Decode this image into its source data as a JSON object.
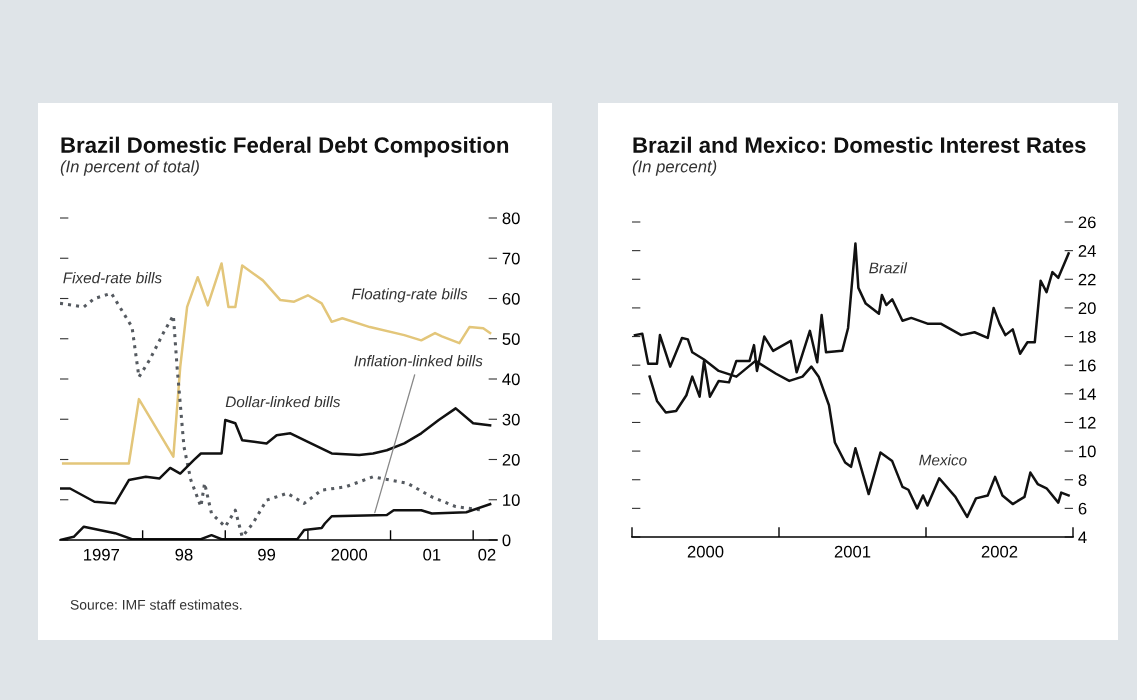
{
  "chart_data": [
    {
      "type": "line",
      "title": "Brazil Domestic Federal Debt Composition",
      "subtitle": "(In percent of total)",
      "xlim": [
        "1997-01-01",
        "2002-04-15"
      ],
      "xticks": [
        {
          "value": "1998-01-01",
          "label": null
        },
        {
          "value": "1999-01-01",
          "label": null
        },
        {
          "value": "2000-01-01",
          "label": null
        },
        {
          "value": "2001-01-01",
          "label": null
        },
        {
          "value": "2002-01-01",
          "label": null
        },
        {
          "value": "1997-07-01",
          "label": "1997"
        },
        {
          "value": "1998-07-01",
          "label": "98"
        },
        {
          "value": "1999-07-01",
          "label": "99"
        },
        {
          "value": "2000-07-01",
          "label": "2000"
        },
        {
          "value": "2001-07-01",
          "label": "01"
        },
        {
          "value": "2002-03-01",
          "label": "02"
        }
      ],
      "ylim": [
        0,
        80
      ],
      "yticks": [
        0,
        10,
        20,
        30,
        40,
        50,
        60,
        70,
        80
      ],
      "annotations": [
        "Source: IMF staff estimates."
      ],
      "series": [
        {
          "name": "Floating-rate bills",
          "color": "#e3c67a",
          "line_style": "solid",
          "x": [
            "1997-01-15",
            "1997-11-01",
            "1997-12-15",
            "1998-05-15",
            "1998-06-15",
            "1998-07-15",
            "1998-09-01",
            "1998-10-15",
            "1998-12-15",
            "1999-01-15",
            "1999-02-15",
            "1999-03-15",
            "1999-06-15",
            "1999-09-01",
            "1999-11-01",
            "2000-01-01",
            "2000-03-01",
            "2000-04-15",
            "2000-06-01",
            "2000-10-01",
            "2001-03-01",
            "2001-05-15",
            "2001-07-15",
            "2001-08-15",
            "2001-11-01",
            "2001-12-15",
            "2002-02-15",
            "2002-03-15"
          ],
          "values": [
            19,
            19,
            35,
            20.7,
            43,
            57.9,
            65.3,
            58.3,
            68.7,
            57.9,
            57.9,
            68.2,
            64.5,
            59.6,
            59.2,
            60.8,
            58.8,
            54.2,
            55.1,
            52.9,
            50.9,
            49.6,
            51.4,
            50.6,
            48.9,
            52.9,
            52.6,
            51.4
          ]
        },
        {
          "name": "Fixed-rate bills",
          "color": "#555a60",
          "line_style": "dotted",
          "x": [
            "1997-01-01",
            "1997-04-15",
            "1997-06-01",
            "1997-08-15",
            "1997-11-15",
            "1997-12-15",
            "1998-02-01",
            "1998-04-01",
            "1998-05-15",
            "1998-06-01",
            "1998-07-01",
            "1998-08-01",
            "1998-09-15",
            "1998-10-01",
            "1998-11-01",
            "1999-01-01",
            "1999-02-15",
            "1999-03-15",
            "1999-05-01",
            "1999-07-01",
            "1999-10-01",
            "1999-12-15",
            "2000-03-01",
            "2000-06-15",
            "2000-10-15",
            "2001-03-15",
            "2001-07-01",
            "2001-10-15",
            "2002-02-15"
          ],
          "values": [
            58.8,
            57.9,
            60,
            61.3,
            52.9,
            40.5,
            44.7,
            51.4,
            55.8,
            43,
            23.2,
            14.9,
            8.3,
            14.1,
            6.6,
            3.3,
            7.4,
            0.8,
            4.1,
            9.9,
            11.6,
            9.1,
            12.4,
            13.2,
            15.7,
            14.1,
            10.7,
            8.3,
            7.4
          ]
        },
        {
          "name": "Dollar-linked bills",
          "color": "#111111",
          "line_style": "solid",
          "x": [
            "1997-01-01",
            "1997-02-15",
            "1997-06-01",
            "1997-09-01",
            "1997-11-01",
            "1998-01-15",
            "1998-03-15",
            "1998-05-01",
            "1998-06-15",
            "1998-08-15",
            "1998-09-15",
            "1998-12-15",
            "1999-01-01",
            "1999-02-15",
            "1999-03-15",
            "1999-07-01",
            "1999-08-15",
            "1999-10-15",
            "2000-01-01",
            "2000-04-15",
            "2000-08-15",
            "2000-10-15",
            "2000-12-15",
            "2001-03-01",
            "2001-05-15",
            "2001-08-01",
            "2001-10-15",
            "2002-01-01",
            "2002-03-15"
          ],
          "values": [
            12.8,
            12.8,
            9.5,
            9.1,
            14.9,
            15.7,
            15.3,
            17.9,
            16.5,
            19.9,
            21.5,
            21.5,
            29.8,
            29,
            24.8,
            24,
            26,
            26.5,
            24.4,
            21.5,
            21.1,
            21.5,
            22.3,
            24,
            26.5,
            29.8,
            32.7,
            29,
            28.5
          ]
        },
        {
          "name": "Inflation-linked bills",
          "color": "#111111",
          "line_style": "solid",
          "x": [
            "1997-01-01",
            "1997-03-01",
            "1997-04-15",
            "1997-09-01",
            "1997-11-15",
            "1998-09-15",
            "1998-11-01",
            "1998-12-15",
            "1999-11-15",
            "1999-12-15",
            "2000-03-01",
            "2000-03-15",
            "2000-04-15",
            "2000-12-15",
            "2001-01-15",
            "2001-05-15",
            "2001-07-01",
            "2001-12-01",
            "2002-03-15"
          ],
          "values": [
            0,
            0.8,
            3.3,
            1.7,
            0.2,
            0.2,
            1.2,
            0.2,
            0.2,
            2.5,
            3,
            4.1,
            5.9,
            6.2,
            7.4,
            7.4,
            6.6,
            6.9,
            8.9
          ]
        }
      ]
    },
    {
      "type": "line",
      "title": "Brazil and Mexico: Domestic Interest Rates",
      "subtitle": "(In percent)",
      "xlim": [
        2000,
        2003
      ],
      "xticks": [
        {
          "value": 2000,
          "label": null
        },
        {
          "value": 2001,
          "label": null
        },
        {
          "value": 2002,
          "label": null
        },
        {
          "value": 2003,
          "label": null
        },
        {
          "value": 2000.5,
          "label": "2000"
        },
        {
          "value": 2001.5,
          "label": "2001"
        },
        {
          "value": 2002.5,
          "label": "2002"
        }
      ],
      "ylim": [
        4,
        26
      ],
      "yticks": [
        4,
        6,
        8,
        10,
        12,
        14,
        16,
        18,
        20,
        22,
        24,
        26
      ],
      "series": [
        {
          "name": "Brazil",
          "color": "#111111",
          "line_style": "solid",
          "x": [
            2000.12,
            2000.17,
            2000.23,
            2000.3,
            2000.37,
            2000.41,
            2000.46,
            2000.49,
            2000.53,
            2000.59,
            2000.66,
            2000.71,
            2000.8,
            2000.83,
            2000.85,
            2000.9,
            2000.96,
            2001.08,
            2001.12,
            2001.21,
            2001.26,
            2001.29,
            2001.32,
            2001.43,
            2001.47,
            2001.52,
            2001.54,
            2001.59,
            2001.68,
            2001.7,
            2001.73,
            2001.77,
            2001.84,
            2001.9,
            2002.01,
            2002.1,
            2002.24,
            2002.33,
            2002.42,
            2002.46,
            2002.5,
            2002.54,
            2002.59,
            2002.64,
            2002.69,
            2002.74,
            2002.78,
            2002.82,
            2002.86,
            2002.9,
            2002.97
          ],
          "values": [
            15.2,
            13.5,
            12.7,
            12.8,
            13.9,
            15.2,
            13.8,
            16.3,
            13.8,
            14.9,
            14.8,
            16.3,
            16.3,
            17.4,
            15.6,
            18,
            17,
            17.7,
            15.5,
            18.4,
            16.2,
            19.5,
            16.9,
            17,
            18.6,
            24.5,
            21.4,
            20.3,
            19.6,
            20.9,
            20.2,
            20.6,
            19.1,
            19.3,
            18.9,
            18.9,
            18.1,
            18.3,
            17.9,
            20,
            18.9,
            18.1,
            18.5,
            16.8,
            17.6,
            17.6,
            21.9,
            21.1,
            22.5,
            22.1,
            23.8
          ]
        },
        {
          "name": "Mexico",
          "color": "#111111",
          "line_style": "solid",
          "x": [
            2000.02,
            2000.07,
            2000.11,
            2000.17,
            2000.19,
            2000.26,
            2000.34,
            2000.38,
            2000.41,
            2000.49,
            2000.59,
            2000.71,
            2000.84,
            2000.98,
            2001.07,
            2001.16,
            2001.22,
            2001.27,
            2001.34,
            2001.38,
            2001.45,
            2001.49,
            2001.52,
            2001.61,
            2001.69,
            2001.77,
            2001.84,
            2001.88,
            2001.94,
            2001.98,
            2002.01,
            2002.09,
            2002.2,
            2002.28,
            2002.34,
            2002.42,
            2002.47,
            2002.52,
            2002.59,
            2002.67,
            2002.71,
            2002.76,
            2002.82,
            2002.9,
            2002.92,
            2002.97
          ],
          "values": [
            18.1,
            18.2,
            16.1,
            16.1,
            18.1,
            15.9,
            17.9,
            17.8,
            16.9,
            16.4,
            15.6,
            15.2,
            16.3,
            15.4,
            14.9,
            15.2,
            15.9,
            15.2,
            13.2,
            10.6,
            9.2,
            8.9,
            10.2,
            7,
            9.9,
            9.3,
            7.5,
            7.3,
            6,
            6.9,
            6.2,
            8.1,
            6.8,
            5.4,
            6.7,
            6.9,
            8.2,
            6.9,
            6.3,
            6.8,
            8.5,
            7.7,
            7.4,
            6.4,
            7.1,
            6.9
          ]
        }
      ]
    }
  ]
}
